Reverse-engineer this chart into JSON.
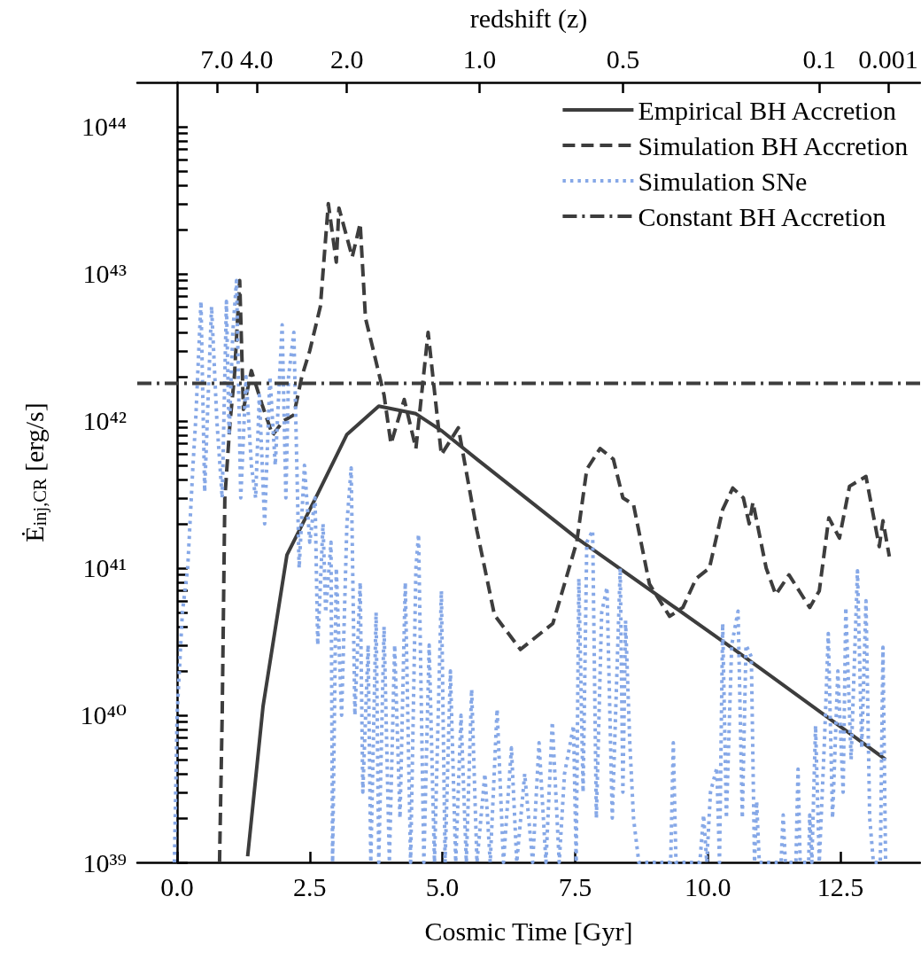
{
  "chart_data": {
    "type": "line",
    "xlabel": "Cosmic Time [Gyr]",
    "ylabel": "Ė$_{inj,CR}$ [erg/s]",
    "x2label": "redshift (z)",
    "xlim": [
      -0.75,
      14.0
    ],
    "xticks": [
      {
        "value": 0,
        "label": "0.0"
      },
      2.5,
      {
        "value": 5,
        "label": "5.0"
      },
      7.5,
      {
        "value": 10,
        "label": "10.0"
      },
      12.5
    ],
    "annotations": [
      {
        "text": "7.0",
        "x": 0.75
      },
      {
        "text": "4.0",
        "x": 1.5
      },
      {
        "text": "2.0",
        "x": 3.2
      },
      {
        "text": "1.0",
        "x": 5.7
      },
      {
        "text": "0.5",
        "x": 8.4
      },
      {
        "text": "0.1",
        "x": 12.1
      },
      {
        "text": "0.001",
        "x": 13.4
      }
    ],
    "ylim": [
      1e+39,
      2e+44
    ],
    "log": "y",
    "legend": "top right",
    "yticks": [
      {
        "value": 1e+39,
        "label": "10³⁹"
      },
      {
        "value": 2e+39,
        "label": null
      },
      {
        "value": 3e+39,
        "label": null
      },
      {
        "value": 4e+39,
        "label": null
      },
      {
        "value": 5e+39,
        "label": null
      },
      {
        "value": 6e+39,
        "label": null
      },
      {
        "value": 7e+39,
        "label": null
      },
      {
        "value": 8e+39,
        "label": null
      },
      {
        "value": 9e+39,
        "label": null
      },
      {
        "value": 1e+40,
        "label": "10⁴⁰"
      },
      {
        "value": 2e+40,
        "label": null
      },
      {
        "value": 3e+40,
        "label": null
      },
      {
        "value": 4e+40,
        "label": null
      },
      {
        "value": 5e+40,
        "label": null
      },
      {
        "value": 6e+40,
        "label": null
      },
      {
        "value": 7e+40,
        "label": null
      },
      {
        "value": 8e+40,
        "label": null
      },
      {
        "value": 9e+40,
        "label": null
      },
      {
        "value": 1e+41,
        "label": "10⁴¹"
      },
      {
        "value": 2e+41,
        "label": null
      },
      {
        "value": 3e+41,
        "label": null
      },
      {
        "value": 4e+41,
        "label": null
      },
      {
        "value": 5e+41,
        "label": null
      },
      {
        "value": 6e+41,
        "label": null
      },
      {
        "value": 7e+41,
        "label": null
      },
      {
        "value": 8e+41,
        "label": null
      },
      {
        "value": 9e+41,
        "label": null
      },
      {
        "value": 1e+42,
        "label": "10⁴²"
      },
      {
        "value": 2e+42,
        "label": null
      },
      {
        "value": 3e+42,
        "label": null
      },
      {
        "value": 4e+42,
        "label": null
      },
      {
        "value": 5e+42,
        "label": null
      },
      {
        "value": 6e+42,
        "label": null
      },
      {
        "value": 7e+42,
        "label": null
      },
      {
        "value": 8e+42,
        "label": null
      },
      {
        "value": 9e+42,
        "label": null
      },
      {
        "value": 1e+43,
        "label": "10⁴³"
      },
      {
        "value": 2e+43,
        "label": null
      },
      {
        "value": 3e+43,
        "label": null
      },
      {
        "value": 4e+43,
        "label": null
      },
      {
        "value": 5e+43,
        "label": null
      },
      {
        "value": 6e+43,
        "label": null
      },
      {
        "value": 7e+43,
        "label": null
      },
      {
        "value": 8e+43,
        "label": null
      },
      {
        "value": 9e+43,
        "label": null
      },
      {
        "value": 1e+44,
        "label": "10⁴⁴"
      }
    ],
    "series": [
      {
        "name": "Empirical BH Accretion",
        "color": "#3d3d3d",
        "line_style": "solid",
        "x": [
          1.33,
          1.62,
          2.07,
          2.65,
          3.2,
          3.8,
          4.5,
          5.0,
          5.65,
          7.53,
          10.5,
          13.35
        ],
        "values": [
          1.1e+39,
          1.15e+40,
          1.23e+41,
          3.2e+41,
          8.1e+41,
          1.26e+42,
          1.12e+42,
          8.5e+41,
          5.5e+41,
          1.6e+41,
          2.8e+40,
          5e+39
        ]
      },
      {
        "name": "Simulation BH Accretion",
        "color": "#3d3d3d",
        "line_style": "dashed",
        "x": [
          0.8,
          0.85,
          0.9,
          1.0,
          1.08,
          1.18,
          1.25,
          1.4,
          1.6,
          1.8,
          2.0,
          2.2,
          2.35,
          2.5,
          2.7,
          2.85,
          3.0,
          3.05,
          3.3,
          3.45,
          3.55,
          3.7,
          3.9,
          4.03,
          4.28,
          4.5,
          4.73,
          4.98,
          5.3,
          5.65,
          5.98,
          6.47,
          7.08,
          7.53,
          7.72,
          7.97,
          8.22,
          8.4,
          8.6,
          8.9,
          9.28,
          9.53,
          9.78,
          10.03,
          10.28,
          10.47,
          10.67,
          10.78,
          10.85,
          11.1,
          11.28,
          11.53,
          11.92,
          12.1,
          12.28,
          12.48,
          12.67,
          12.98,
          13.23,
          13.3,
          13.42
        ],
        "values": [
          1e+39,
          1e+40,
          3e+41,
          1e+42,
          2e+42,
          9e+42,
          1.2e+42,
          2.2e+42,
          1.3e+42,
          8e+41,
          1e+42,
          1.1e+42,
          2e+42,
          3e+42,
          6e+42,
          3e+43,
          1.2e+43,
          2.8e+43,
          1.3e+43,
          2.2e+43,
          5e+42,
          3e+42,
          1.5e+42,
          7e+41,
          1.4e+42,
          6.5e+41,
          4e+42,
          5.9e+41,
          9e+41,
          1.8e+41,
          4.8e+40,
          2.8e+40,
          4.2e+40,
          1.5e+41,
          4.7e+41,
          6.5e+41,
          5.5e+41,
          3e+41,
          2.7e+41,
          7.8e+40,
          4.7e+40,
          5.4e+40,
          8.5e+40,
          1e+41,
          2.5e+41,
          3.5e+41,
          3e+41,
          2e+41,
          2.8e+41,
          1e+41,
          6.6e+40,
          9e+40,
          5.4e+40,
          7e+40,
          2.2e+41,
          1.6e+41,
          3.6e+41,
          4.2e+41,
          1.4e+41,
          2.1e+41,
          1.2e+41
        ]
      },
      {
        "name": "Simulation SNe",
        "color": "#86a8e7",
        "line_style": "dotted",
        "x": [
          -0.05,
          0.0,
          0.1,
          0.2,
          0.3,
          0.35,
          0.45,
          0.52,
          0.6,
          0.65,
          0.75,
          0.85,
          0.93,
          0.98,
          1.05,
          1.12,
          1.2,
          1.3,
          1.4,
          1.48,
          1.55,
          1.65,
          1.75,
          1.85,
          1.98,
          2.05,
          2.1,
          2.2,
          2.3,
          2.4,
          2.5,
          2.6,
          2.65,
          2.75,
          2.8,
          2.9,
          2.93,
          3.0,
          3.1,
          3.2,
          3.28,
          3.35,
          3.45,
          3.5,
          3.6,
          3.65,
          3.75,
          3.8,
          3.9,
          4.0,
          4.1,
          4.2,
          4.3,
          4.4,
          4.5,
          4.55,
          4.65,
          4.75,
          4.85,
          4.98,
          5.05,
          5.15,
          5.25,
          5.35,
          5.45,
          5.55,
          5.65,
          5.8,
          5.9,
          6.03,
          6.15,
          6.3,
          6.4,
          6.55,
          6.7,
          6.82,
          6.95,
          7.07,
          7.2,
          7.3,
          7.47,
          7.52,
          7.57,
          7.65,
          7.72,
          7.83,
          7.9,
          8.0,
          8.1,
          8.2,
          8.35,
          8.4,
          8.45,
          8.53,
          8.6,
          8.7,
          9.3,
          9.35,
          9.4,
          9.85,
          9.92,
          9.98,
          10.05,
          10.17,
          10.22,
          10.28,
          10.35,
          10.45,
          10.57,
          10.65,
          10.72,
          10.82,
          10.88,
          10.92,
          10.97,
          11.38,
          11.42,
          11.46,
          11.66,
          11.7,
          11.74,
          11.9,
          11.92,
          11.96,
          12.03,
          12.1,
          12.2,
          12.27,
          12.35,
          12.45,
          12.55,
          12.6,
          12.7,
          12.82,
          12.9,
          12.98,
          13.05,
          13.12,
          13.25,
          13.3,
          13.35
        ],
        "values": [
          1e+39,
          1e+40,
          5e+40,
          1e+41,
          5e+41,
          1e+42,
          6.5e+42,
          3.3e+41,
          2e+42,
          6e+42,
          1e+42,
          3e+41,
          6.5e+42,
          8e+41,
          4e+42,
          9e+42,
          3e+41,
          2e+42,
          5e+41,
          3e+41,
          1.5e+42,
          2e+41,
          2e+42,
          5e+41,
          4.5e+42,
          3e+41,
          2e+42,
          4e+42,
          1e+41,
          5e+41,
          1.5e+41,
          3e+41,
          3e+40,
          2e+41,
          5e+40,
          1.5e+41,
          1e+39,
          1e+41,
          1e+40,
          2e+41,
          4.8e+41,
          1e+40,
          8e+40,
          3e+39,
          3e+40,
          1e+39,
          5e+40,
          1e+39,
          4e+40,
          1e+39,
          3e+40,
          2e+39,
          8e+40,
          1e+39,
          1e+41,
          1.7e+41,
          1e+39,
          3e+40,
          1e+39,
          7e+40,
          1e+39,
          2e+40,
          1e+39,
          1e+40,
          1e+39,
          1.5e+40,
          1e+39,
          4e+39,
          1e+39,
          1.1e+40,
          1e+39,
          6e+39,
          1e+39,
          4e+39,
          1e+39,
          6.5e+39,
          1e+39,
          9e+39,
          1e+39,
          4e+39,
          8.5e+39,
          1e+39,
          8.5e+40,
          3e+39,
          1.5e+41,
          1.8e+41,
          2e+39,
          5e+40,
          7.4e+40,
          2e+39,
          1e+41,
          3e+39,
          4.4e+40,
          6.5e+39,
          2e+39,
          1e+39,
          1e+39,
          6.5e+39,
          1e+39,
          1e+39,
          2.1e+39,
          1e+39,
          3e+39,
          4.4e+39,
          1e+39,
          4.2e+40,
          2e+39,
          3e+40,
          5.1e+40,
          2e+39,
          3e+40,
          2.5e+40,
          1e+39,
          2.6e+39,
          1e+39,
          1e+39,
          2.1e+39,
          1e+39,
          1e+39,
          4.3e+39,
          1e+39,
          1e+39,
          2.1e+39,
          1e+39,
          8.5e+39,
          1e+39,
          7e+39,
          3.6e+40,
          2e+39,
          2e+40,
          3e+39,
          5.4e+40,
          5e+39,
          9.6e+40,
          6e+39,
          6e+40,
          2e+39,
          1e+39,
          1e+39,
          2.9e+40,
          1e+39
        ]
      },
      {
        "name": "Constant BH Accretion",
        "color": "#3d3d3d",
        "line_style": "dashdot",
        "x": [
          -0.75,
          14.0
        ],
        "values": [
          1.8e+42,
          1.8e+42
        ]
      }
    ]
  }
}
